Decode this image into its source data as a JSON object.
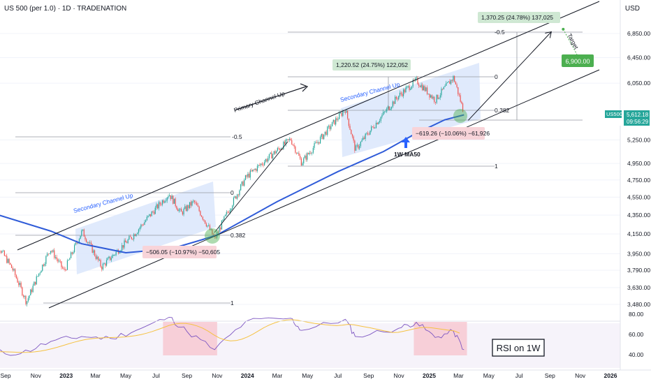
{
  "header": {
    "title": "US 500 (per 1.0) · 1D · TRADENATION",
    "currency": "USD"
  },
  "price_badge": {
    "symbol": "US500",
    "price": "5,612.18",
    "countdown": "09:56:29"
  },
  "annotations": {
    "primary_channel": "Primary Channel Up",
    "secondary_channel_1": "Secondary Channel Up",
    "secondary_channel_2": "Secondary Channel Up",
    "ma_label": "1W MA50",
    "target_label": "Target",
    "target_value": "6,900.00",
    "rsi_label": "RSI on 1W",
    "measure_1": "1,220.52 (24.75%) 122,052",
    "measure_2": "1,370.25 (24.78%) 137,025",
    "drop_1": "−506.05 (−10.97%) −50,605",
    "drop_2": "−619.26 (−10.06%) −61,926",
    "fib_1": {
      "minus_half": "-0.5",
      "zero": "0",
      "point382": "0.382",
      "one": "1"
    },
    "fib_2": {
      "minus_half": "-0.5",
      "zero": "0",
      "point382": "0.382",
      "one": "1"
    }
  },
  "colors": {
    "candle_up": "#26a69a",
    "candle_down": "#ef5350",
    "ma": "#2f5bd8",
    "channel_fill": "#dbe6fb",
    "rsi_line": "#7e57c2",
    "rsi_ma": "#f5c242",
    "rsi_zone": "#f7c6cf",
    "target_badge": "#4caf50",
    "price_badge": "#26a69a"
  },
  "chart_data": {
    "type": "candlestick",
    "instrument": "US500",
    "timeframe": "1D",
    "y_axis_ticks": [
      6850,
      6450,
      6050,
      5610,
      5250,
      4950,
      4750,
      4550,
      4350,
      4150,
      3950,
      3790,
      3630,
      3480
    ],
    "y_axis_tick_labels": [
      "6,850.00",
      "6,450.00",
      "6,050.00",
      "5,612.18",
      "5,250.00",
      "4,950.00",
      "4,750.00",
      "4,550.00",
      "4,350.00",
      "4,150.00",
      "3,950.00",
      "3,790.00",
      "3,630.00",
      "3,480.00"
    ],
    "x_axis_ticks": [
      "Sep",
      "Nov",
      "2023",
      "Mar",
      "May",
      "Jul",
      "Sep",
      "Nov",
      "2024",
      "Mar",
      "May",
      "Jul",
      "Sep",
      "Nov",
      "2025",
      "Mar",
      "May",
      "Jul",
      "Sep",
      "Nov",
      "2026"
    ],
    "price_path": [
      [
        "2022-08-01",
        4150
      ],
      [
        "2022-09-15",
        3800
      ],
      [
        "2022-10-13",
        3500
      ],
      [
        "2022-11-30",
        4000
      ],
      [
        "2022-12-28",
        3780
      ],
      [
        "2023-02-02",
        4180
      ],
      [
        "2023-03-13",
        3820
      ],
      [
        "2023-05-15",
        4130
      ],
      [
        "2023-07-27",
        4590
      ],
      [
        "2023-08-20",
        4370
      ],
      [
        "2023-09-15",
        4500
      ],
      [
        "2023-10-27",
        4100
      ],
      [
        "2023-12-29",
        4780
      ],
      [
        "2024-03-28",
        5260
      ],
      [
        "2024-04-19",
        4960
      ],
      [
        "2024-07-16",
        5670
      ],
      [
        "2024-08-05",
        5120
      ],
      [
        "2024-10-31",
        5860
      ],
      [
        "2024-12-06",
        6090
      ],
      [
        "2025-01-13",
        5800
      ],
      [
        "2025-02-19",
        6140
      ],
      [
        "2025-03-12",
        5610
      ]
    ],
    "ma_1w50": [
      [
        "2022-08-01",
        4380
      ],
      [
        "2022-12-01",
        4180
      ],
      [
        "2023-02-01",
        4050
      ],
      [
        "2023-05-01",
        3960
      ],
      [
        "2023-08-01",
        4000
      ],
      [
        "2023-10-01",
        4090
      ],
      [
        "2023-11-01",
        4140
      ],
      [
        "2024-03-01",
        4500
      ],
      [
        "2024-07-01",
        4850
      ],
      [
        "2024-10-01",
        5100
      ],
      [
        "2024-12-01",
        5320
      ],
      [
        "2025-02-01",
        5520
      ],
      [
        "2025-03-12",
        5590
      ]
    ],
    "projection": [
      [
        "2025-03-12",
        5610
      ],
      [
        "2025-09-25",
        6880
      ]
    ],
    "target": 6900,
    "rsi_1w": {
      "y_axis_ticks": [
        80,
        60,
        40
      ],
      "values": [
        [
          "2022-08-01",
          43
        ],
        [
          "2022-10-01",
          41
        ],
        [
          "2022-12-01",
          53
        ],
        [
          "2023-02-01",
          58
        ],
        [
          "2023-04-01",
          56
        ],
        [
          "2023-06-01",
          66
        ],
        [
          "2023-07-27",
          77
        ],
        [
          "2023-09-01",
          63
        ],
        [
          "2023-10-27",
          45
        ],
        [
          "2023-12-29",
          73
        ],
        [
          "2024-03-28",
          76
        ],
        [
          "2024-04-19",
          64
        ],
        [
          "2024-07-16",
          75
        ],
        [
          "2024-08-05",
          58
        ],
        [
          "2024-10-31",
          66
        ],
        [
          "2024-12-06",
          72
        ],
        [
          "2025-01-13",
          57
        ],
        [
          "2025-02-19",
          63
        ],
        [
          "2025-03-12",
          45
        ]
      ]
    }
  }
}
